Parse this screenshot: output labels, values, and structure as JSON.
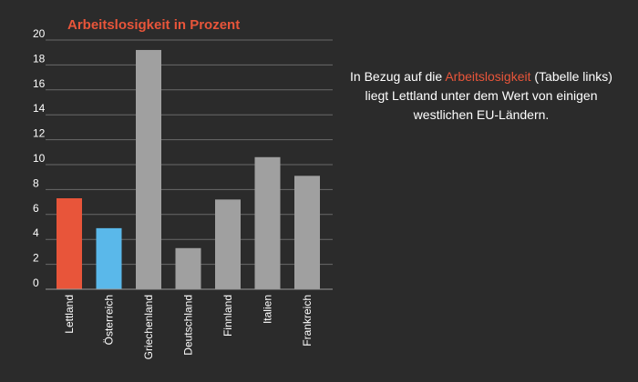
{
  "colors": {
    "background": "#2b2b2b",
    "accent_red": "#e8553a",
    "accent_blue": "#5ab8ea",
    "bar_gray": "#a0a0a0",
    "text": "#ffffff"
  },
  "chart_data": {
    "type": "bar",
    "title": "Arbeitslosigkeit in Prozent",
    "xlabel": "",
    "ylabel": "",
    "ylim": [
      0,
      20
    ],
    "yticks": [
      0,
      2,
      4,
      6,
      8,
      10,
      12,
      14,
      16,
      18,
      20
    ],
    "grid": true,
    "categories": [
      "Lettland",
      "Österreich",
      "Griechenland",
      "Deutschland",
      "Finnland",
      "Italien",
      "Frankreich"
    ],
    "values": [
      7.3,
      4.9,
      19.2,
      3.3,
      7.2,
      10.6,
      9.1
    ],
    "bar_colors": [
      "#e8553a",
      "#5ab8ea",
      "#a0a0a0",
      "#a0a0a0",
      "#a0a0a0",
      "#a0a0a0",
      "#a0a0a0"
    ]
  },
  "side_text": {
    "before": "In Bezug auf die ",
    "highlight": "Arbeitslosigkeit",
    "after": " (Tabelle links) liegt Lettland unter dem Wert von einigen westlichen EU-Ländern."
  }
}
